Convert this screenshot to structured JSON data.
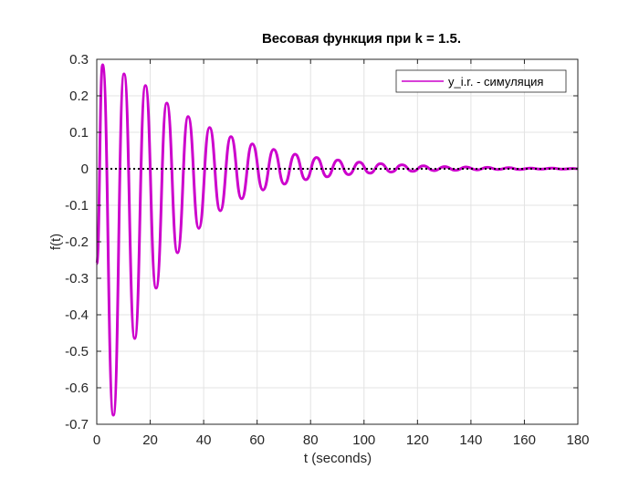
{
  "chart_data": {
    "type": "line",
    "title": "Весовая функция при k = 1.5.",
    "xlabel": "t (seconds)",
    "ylabel": "f(t)",
    "xlim": [
      0,
      180
    ],
    "ylim": [
      -0.7,
      0.3
    ],
    "xticks": [
      0,
      20,
      40,
      60,
      80,
      100,
      120,
      140,
      160,
      180
    ],
    "yticks": [
      -0.7,
      -0.6,
      -0.5,
      -0.4,
      -0.3,
      -0.2,
      -0.1,
      0,
      0.1,
      0.2,
      0.3
    ],
    "xtick_labels": [
      "0",
      "20",
      "40",
      "60",
      "80",
      "100",
      "120",
      "140",
      "160",
      "180"
    ],
    "ytick_labels": [
      "-0.7",
      "-0.6",
      "-0.5",
      "-0.4",
      "-0.3",
      "-0.2",
      "-0.1",
      "0",
      "0.1",
      "0.2",
      "0.3"
    ],
    "grid": true,
    "legend_position": "top-right",
    "series": [
      {
        "name": "y_i.r. - симуляция",
        "color": "#cc00cc",
        "style": "solid",
        "x": [
          0,
          2.2,
          6.2,
          10.2,
          14.2,
          18.2,
          22.2,
          26.2,
          30.2,
          34.2,
          38.2,
          42.2,
          46.2,
          50.2,
          54.2,
          58.2,
          62.2,
          66.2,
          70.2,
          74.2,
          78.2,
          82.2,
          86.2,
          90.2,
          94.2,
          98.2,
          102.2,
          106.2,
          110.2,
          114.2,
          118.2,
          122.2,
          126.2,
          130.2,
          134.2,
          138.2,
          142.2,
          146.2,
          150.2,
          154.2,
          158.2,
          162.2,
          166.2,
          170.2,
          174.2,
          178.2,
          180
        ],
        "y": [
          -0.26,
          0.285,
          -0.675,
          0.26,
          -0.465,
          0.228,
          -0.327,
          0.18,
          -0.23,
          0.143,
          -0.163,
          0.113,
          -0.115,
          0.088,
          -0.082,
          0.068,
          -0.058,
          0.053,
          -0.042,
          0.04,
          -0.03,
          0.031,
          -0.022,
          0.024,
          -0.016,
          0.018,
          -0.012,
          0.014,
          -0.009,
          0.011,
          -0.007,
          0.008,
          -0.005,
          0.006,
          -0.004,
          0.005,
          -0.003,
          0.004,
          -0.002,
          0.003,
          -0.002,
          0.002,
          -0.001,
          0.002,
          -0.001,
          0.001,
          0
        ]
      },
      {
        "color": "#000000",
        "style": "dotted",
        "x": [
          0,
          180
        ],
        "y": [
          0,
          0
        ]
      }
    ]
  }
}
